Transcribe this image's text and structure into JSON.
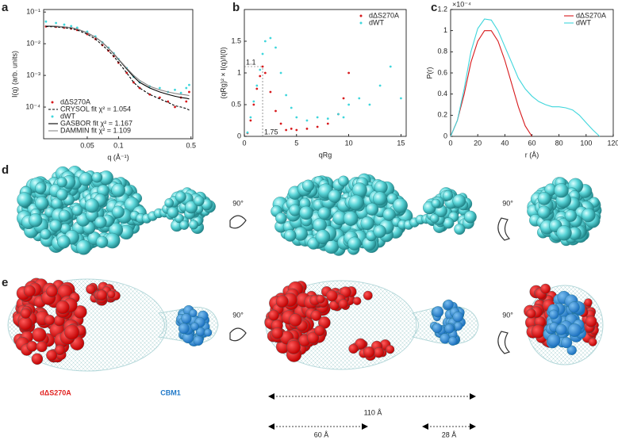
{
  "chart_data": [
    {
      "type": "scatter",
      "xlabel": "q (Å⁻¹)",
      "ylabel": "I(q) (arb. units)",
      "xscale": "log",
      "yscale": "log",
      "xlim": [
        0.019,
        0.52
      ],
      "ylim": [
        1e-05,
        0.12
      ],
      "xticks": [
        0.05,
        0.1,
        0.5
      ],
      "yticks": [
        {
          "value": 0.1,
          "label": "10⁻¹"
        },
        {
          "value": 0.01,
          "label": "10⁻²"
        },
        {
          "value": 0.001,
          "label": "10⁻³"
        },
        {
          "value": 0.0001,
          "label": "10⁻⁴"
        }
      ],
      "legend": "lower left",
      "x": [
        0.02,
        0.025,
        0.03,
        0.035,
        0.04,
        0.05,
        0.06,
        0.07,
        0.08,
        0.09,
        0.1,
        0.12,
        0.14,
        0.16,
        0.2,
        0.25,
        0.3,
        0.35,
        0.4,
        0.45,
        0.48
      ],
      "series": [
        {
          "name": "dΔS270A",
          "color": "#d7191c",
          "mode": "markers",
          "values": [
            0.035,
            0.034,
            0.032,
            0.03,
            0.027,
            0.02,
            0.014,
            0.009,
            0.006,
            0.004,
            0.0025,
            0.0012,
            0.0006,
            0.0004,
            0.00025,
            0.0002,
            0.00015,
            0.0001,
            0.0002,
            0.00015,
            0.0003
          ]
        },
        {
          "name": "CRYSOL fit χ² = 1.054",
          "color": "#000000",
          "mode": "dashed",
          "values": [
            0.035,
            0.034,
            0.032,
            0.03,
            0.027,
            0.02,
            0.014,
            0.009,
            0.006,
            0.004,
            0.0026,
            0.0012,
            0.0006,
            0.0004,
            0.00025,
            0.00018,
            0.00014,
            0.00011,
            0.0001,
            9e-05,
            8e-05
          ]
        },
        {
          "name": "dWT",
          "color": "#3fd6dc",
          "mode": "markers",
          "values": [
            0.05,
            0.045,
            0.04,
            0.036,
            0.032,
            0.024,
            0.017,
            0.011,
            0.0075,
            0.005,
            0.0033,
            0.0017,
            0.0009,
            0.0006,
            0.00045,
            0.0004,
            0.0003,
            0.00035,
            0.00028,
            0.0004,
            0.0005
          ]
        },
        {
          "name": "GASBOR fit χ² = 1.167",
          "color": "#000000",
          "mode": "solid",
          "values": [
            0.036,
            0.035,
            0.034,
            0.032,
            0.029,
            0.022,
            0.016,
            0.011,
            0.0072,
            0.0048,
            0.0032,
            0.0016,
            0.0009,
            0.0006,
            0.0004,
            0.0003,
            0.00025,
            0.00022,
            0.0002,
            0.00019,
            0.00018
          ]
        },
        {
          "name": "DAMMIN fit χ² = 1.109",
          "color": "#888888",
          "mode": "solid",
          "values": [
            0.037,
            0.036,
            0.034,
            0.032,
            0.029,
            0.022,
            0.016,
            0.011,
            0.0073,
            0.0049,
            0.0033,
            0.0017,
            0.001,
            0.0007,
            0.00045,
            0.00035,
            0.0003,
            0.00027,
            0.00025,
            0.00024,
            0.00023
          ]
        }
      ]
    },
    {
      "type": "scatter",
      "xlabel": "qRg",
      "ylabel": "(qRg)² × I(q)/I(0)",
      "xlim": [
        0,
        15.5
      ],
      "ylim": [
        0,
        2
      ],
      "xticks": [
        0,
        5,
        10,
        15
      ],
      "yticks": [
        0,
        0.5,
        1,
        1.5
      ],
      "legend": "upper right",
      "guides": {
        "x": 1.75,
        "y": 1.1
      },
      "x": [
        0.3,
        0.6,
        0.9,
        1.2,
        1.5,
        1.75,
        2,
        2.5,
        3,
        3.5,
        4,
        4.5,
        5,
        6,
        7,
        8,
        9,
        9.5,
        10,
        11,
        12,
        13,
        14,
        15
      ],
      "series": [
        {
          "name": "dΔS270A",
          "color": "#d7191c",
          "mode": "markers",
          "values": [
            0.05,
            0.25,
            0.5,
            0.75,
            0.95,
            1.1,
            1.0,
            0.7,
            0.4,
            0.2,
            0.1,
            0.12,
            0.1,
            0.12,
            0.15,
            0.2,
            0.35,
            0.6,
            1.0,
            null,
            null,
            null,
            null,
            null
          ]
        },
        {
          "name": "dWT",
          "color": "#3fd6dc",
          "mode": "markers",
          "values": [
            0.06,
            0.3,
            0.55,
            0.8,
            1.05,
            1.3,
            1.5,
            1.55,
            1.4,
            1.0,
            0.65,
            0.45,
            0.3,
            0.25,
            0.3,
            0.28,
            0.35,
            0.3,
            0.5,
            0.6,
            0.5,
            0.8,
            1.1,
            0.6
          ]
        }
      ]
    },
    {
      "type": "line",
      "xlabel": "r (Å)",
      "ylabel": "P(r)",
      "y_multiplier": "×10⁻⁴",
      "xlim": [
        0,
        120
      ],
      "ylim": [
        0,
        1.2
      ],
      "xticks": [
        0,
        20,
        40,
        60,
        80,
        100,
        120
      ],
      "yticks": [
        0,
        0.2,
        0.4,
        0.6,
        0.8,
        1,
        1.2
      ],
      "legend": "upper right",
      "x": [
        0,
        5,
        10,
        15,
        20,
        25,
        30,
        35,
        40,
        45,
        50,
        55,
        60,
        65,
        70,
        75,
        80,
        85,
        90,
        95,
        100,
        105,
        110
      ],
      "series": [
        {
          "name": "dΔS270A",
          "color": "#d7191c",
          "mode": "solid",
          "values": [
            0,
            0.15,
            0.4,
            0.7,
            0.9,
            1.0,
            1.0,
            0.9,
            0.72,
            0.5,
            0.28,
            0.1,
            0,
            null,
            null,
            null,
            null,
            null,
            null,
            null,
            null,
            null,
            null
          ]
        },
        {
          "name": "dWT",
          "color": "#3fd6dc",
          "mode": "solid",
          "values": [
            0,
            0.15,
            0.45,
            0.8,
            1.02,
            1.11,
            1.1,
            1.0,
            0.85,
            0.7,
            0.55,
            0.45,
            0.38,
            0.33,
            0.3,
            0.28,
            0.28,
            0.27,
            0.25,
            0.2,
            0.13,
            0.06,
            0
          ]
        }
      ]
    }
  ],
  "panel_labels": [
    "a",
    "b",
    "c",
    "d",
    "e"
  ],
  "rotation_labels": [
    "90°",
    "90°",
    "90°",
    "90°"
  ],
  "domain_labels": {
    "mutant": "dΔS270A",
    "cbm": "CBM1"
  },
  "dimensions": [
    "110 Å",
    "60 Å",
    "28 Å"
  ]
}
